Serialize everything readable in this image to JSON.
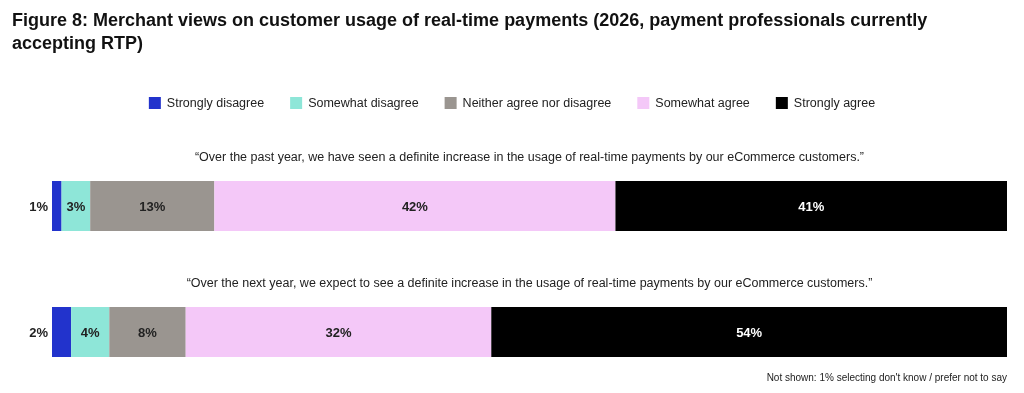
{
  "chart_data": {
    "type": "bar",
    "orientation": "horizontal",
    "stacked": true,
    "title": "Figure 8: Merchant views on customer usage of real-time payments (2026, payment professionals currently accepting RTP)",
    "categories": [
      "“Over the past year, we have seen a definite increase in the usage of real-time payments by our eCommerce customers.”",
      "“Over the next year, we expect to see a definite increase in the usage of real-time payments by our eCommerce customers.”"
    ],
    "series": [
      {
        "name": "Strongly disagree",
        "color": "#2233cc",
        "values": [
          1,
          2
        ],
        "value_labels": [
          "1%",
          "2%"
        ]
      },
      {
        "name": "Somewhat disagree",
        "color": "#8ee6d8",
        "values": [
          3,
          4
        ],
        "value_labels": [
          "3%",
          "4%"
        ]
      },
      {
        "name": "Neither agree nor disagree",
        "color": "#9a9590",
        "values": [
          13,
          8
        ],
        "value_labels": [
          "13%",
          "8%"
        ]
      },
      {
        "name": "Somewhat agree",
        "color": "#f4c8f8",
        "values": [
          42,
          32
        ],
        "value_labels": [
          "42%",
          "32%"
        ]
      },
      {
        "name": "Strongly agree",
        "color": "#000000",
        "values": [
          41,
          54
        ],
        "value_labels": [
          "41%",
          "54%"
        ]
      }
    ],
    "legend": "top",
    "annotations": [
      "Not shown: 1% selecting don't know / prefer not to say"
    ]
  }
}
